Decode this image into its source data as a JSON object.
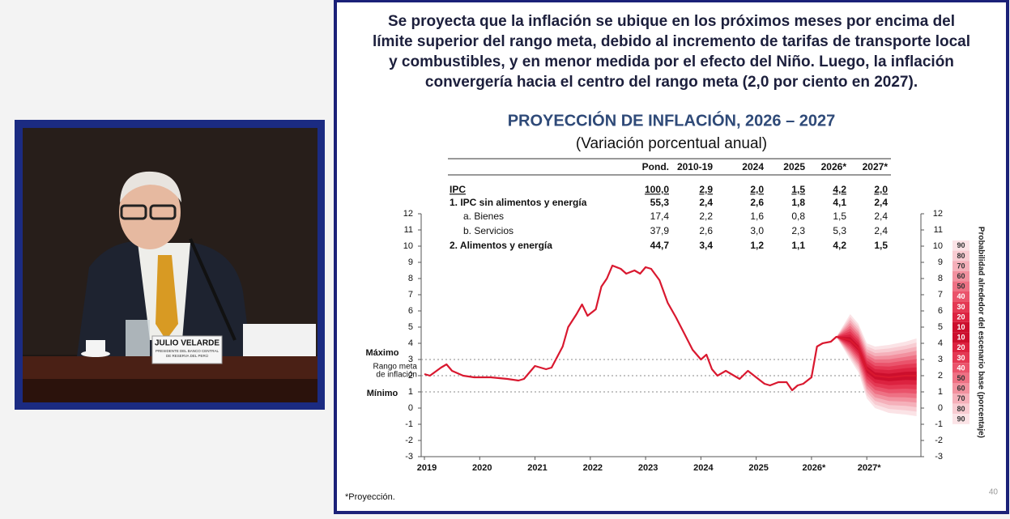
{
  "video": {
    "nameplate": "JULIO VELARDE",
    "nameplate_sub": [
      "PRESIDENTE DEL BANCO CENTRAL",
      "DE RESERVA DEL PERÚ"
    ]
  },
  "slide": {
    "headline": [
      "Se proyecta que la inflación se ubique en los próximos meses por encima del",
      "límite superior del rango meta, debido al incremento de tarifas de transporte local",
      "y combustibles, y en menor medida por el efecto del Niño. Luego, la inflación",
      "convergería hacia el centro del rango meta (2,0 por ciento en 2027)."
    ],
    "footnote": "*Proyección.",
    "page_number": "40"
  },
  "table": {
    "header": [
      "Pond.",
      "2010-19",
      "2024",
      "2025",
      "2026*",
      "2027*"
    ],
    "rows": [
      [
        "IPC",
        "100,0",
        "2,9",
        "2,0",
        "1,5",
        "4,2",
        "2,0"
      ],
      [
        "1. IPC sin alimentos y energía",
        "55,3",
        "2,4",
        "2,6",
        "1,8",
        "4,1",
        "2,4"
      ],
      [
        "a. Bienes",
        "17,4",
        "2,2",
        "1,6",
        "0,8",
        "1,5",
        "2,4"
      ],
      [
        "b. Servicios",
        "37,9",
        "2,6",
        "3,0",
        "2,3",
        "5,3",
        "2,4"
      ],
      [
        "2. Alimentos y energía",
        "44,7",
        "3,4",
        "1,2",
        "1,1",
        "4,2",
        "1,5"
      ]
    ]
  },
  "chart_data": {
    "type": "line",
    "title": "PROYECCIÓN DE INFLACIÓN, 2026 – 2027",
    "subtitle": "(Variación porcentual anual)",
    "color": "#d9182f",
    "x": [
      2019.0,
      2019.1,
      2019.3,
      2019.4,
      2019.5,
      2019.7,
      2019.9,
      2020.2,
      2020.5,
      2020.7,
      2020.8,
      2021.0,
      2021.2,
      2021.3,
      2021.5,
      2021.6,
      2021.75,
      2021.85,
      2021.95,
      2022.1,
      2022.2,
      2022.3,
      2022.4,
      2022.55,
      2022.65,
      2022.8,
      2022.9,
      2023.0,
      2023.1,
      2023.25,
      2023.4,
      2023.55,
      2023.7,
      2023.85,
      2024.0,
      2024.1,
      2024.2,
      2024.3,
      2024.45,
      2024.6,
      2024.7,
      2024.85,
      2025.0,
      2025.15,
      2025.25,
      2025.4,
      2025.55,
      2025.65,
      2025.75,
      2025.85,
      2026.0,
      2026.1,
      2026.2,
      2026.35,
      2026.45,
      2026.7,
      2026.85,
      2027.0,
      2027.15,
      2027.4,
      2027.7,
      2027.9
    ],
    "values": [
      2.1,
      2.0,
      2.5,
      2.7,
      2.3,
      2.0,
      1.9,
      1.9,
      1.8,
      1.7,
      1.8,
      2.6,
      2.4,
      2.5,
      3.8,
      5.0,
      5.8,
      6.4,
      5.7,
      6.1,
      7.5,
      8.0,
      8.8,
      8.6,
      8.3,
      8.5,
      8.3,
      8.7,
      8.6,
      7.9,
      6.5,
      5.6,
      4.6,
      3.6,
      3.0,
      3.3,
      2.4,
      2.0,
      2.3,
      2.0,
      1.8,
      2.3,
      1.9,
      1.5,
      1.4,
      1.6,
      1.6,
      1.1,
      1.4,
      1.5,
      1.9,
      3.8,
      4.0,
      4.1,
      4.4,
      4.2,
      3.7,
      2.4,
      2.0,
      1.9,
      2.0,
      2.0
    ],
    "fan": {
      "x": [
        2026.45,
        2026.7,
        2026.85,
        2027.0,
        2027.15,
        2027.4,
        2027.7,
        2027.9
      ],
      "center": [
        4.4,
        4.2,
        3.7,
        2.4,
        2.0,
        1.9,
        2.0,
        2.0
      ],
      "upper": [
        4.4,
        5.8,
        5.2,
        4.0,
        3.8,
        3.9,
        4.1,
        4.3
      ],
      "lower": [
        4.4,
        3.0,
        2.2,
        0.6,
        0.0,
        -0.3,
        -0.4,
        -0.5
      ]
    },
    "xlim": [
      2019,
      2027.92
    ],
    "xticks": [
      2019,
      2020,
      2021,
      2022,
      2023,
      2024,
      2025,
      {
        "value": 2026,
        "label": "2026*"
      },
      {
        "value": 2027,
        "label": "2027*"
      }
    ],
    "ylim": [
      -3,
      12
    ],
    "yticks": [
      -3,
      -2,
      -1,
      0,
      1,
      2,
      3,
      4,
      5,
      6,
      7,
      8,
      9,
      10,
      11,
      12
    ],
    "annotations": [
      {
        "lines": [
          "Máximo"
        ],
        "y": 3
      },
      {
        "lines": [
          "Rango meta",
          "de inflación"
        ],
        "y": 2
      },
      {
        "lines": [
          "Mínimo"
        ],
        "y": 1
      }
    ],
    "probability_scale": {
      "label": "Probabilidad alrededor del escenario base (porcentaje)",
      "values": [
        90,
        80,
        70,
        60,
        50,
        40,
        30,
        20,
        10,
        10,
        20,
        30,
        40,
        50,
        60,
        70,
        80,
        90
      ],
      "colors": [
        "#fbe3e6",
        "#f8ccd2",
        "#f5b0ba",
        "#f2919f",
        "#ee7184",
        "#ea536b",
        "#e43853",
        "#dc2240",
        "#cc0f2d",
        "#cc0f2d",
        "#dc2240",
        "#e43853",
        "#ea536b",
        "#ee7184",
        "#f2919f",
        "#f5b0ba",
        "#f8ccd2",
        "#fbe3e6"
      ]
    }
  }
}
